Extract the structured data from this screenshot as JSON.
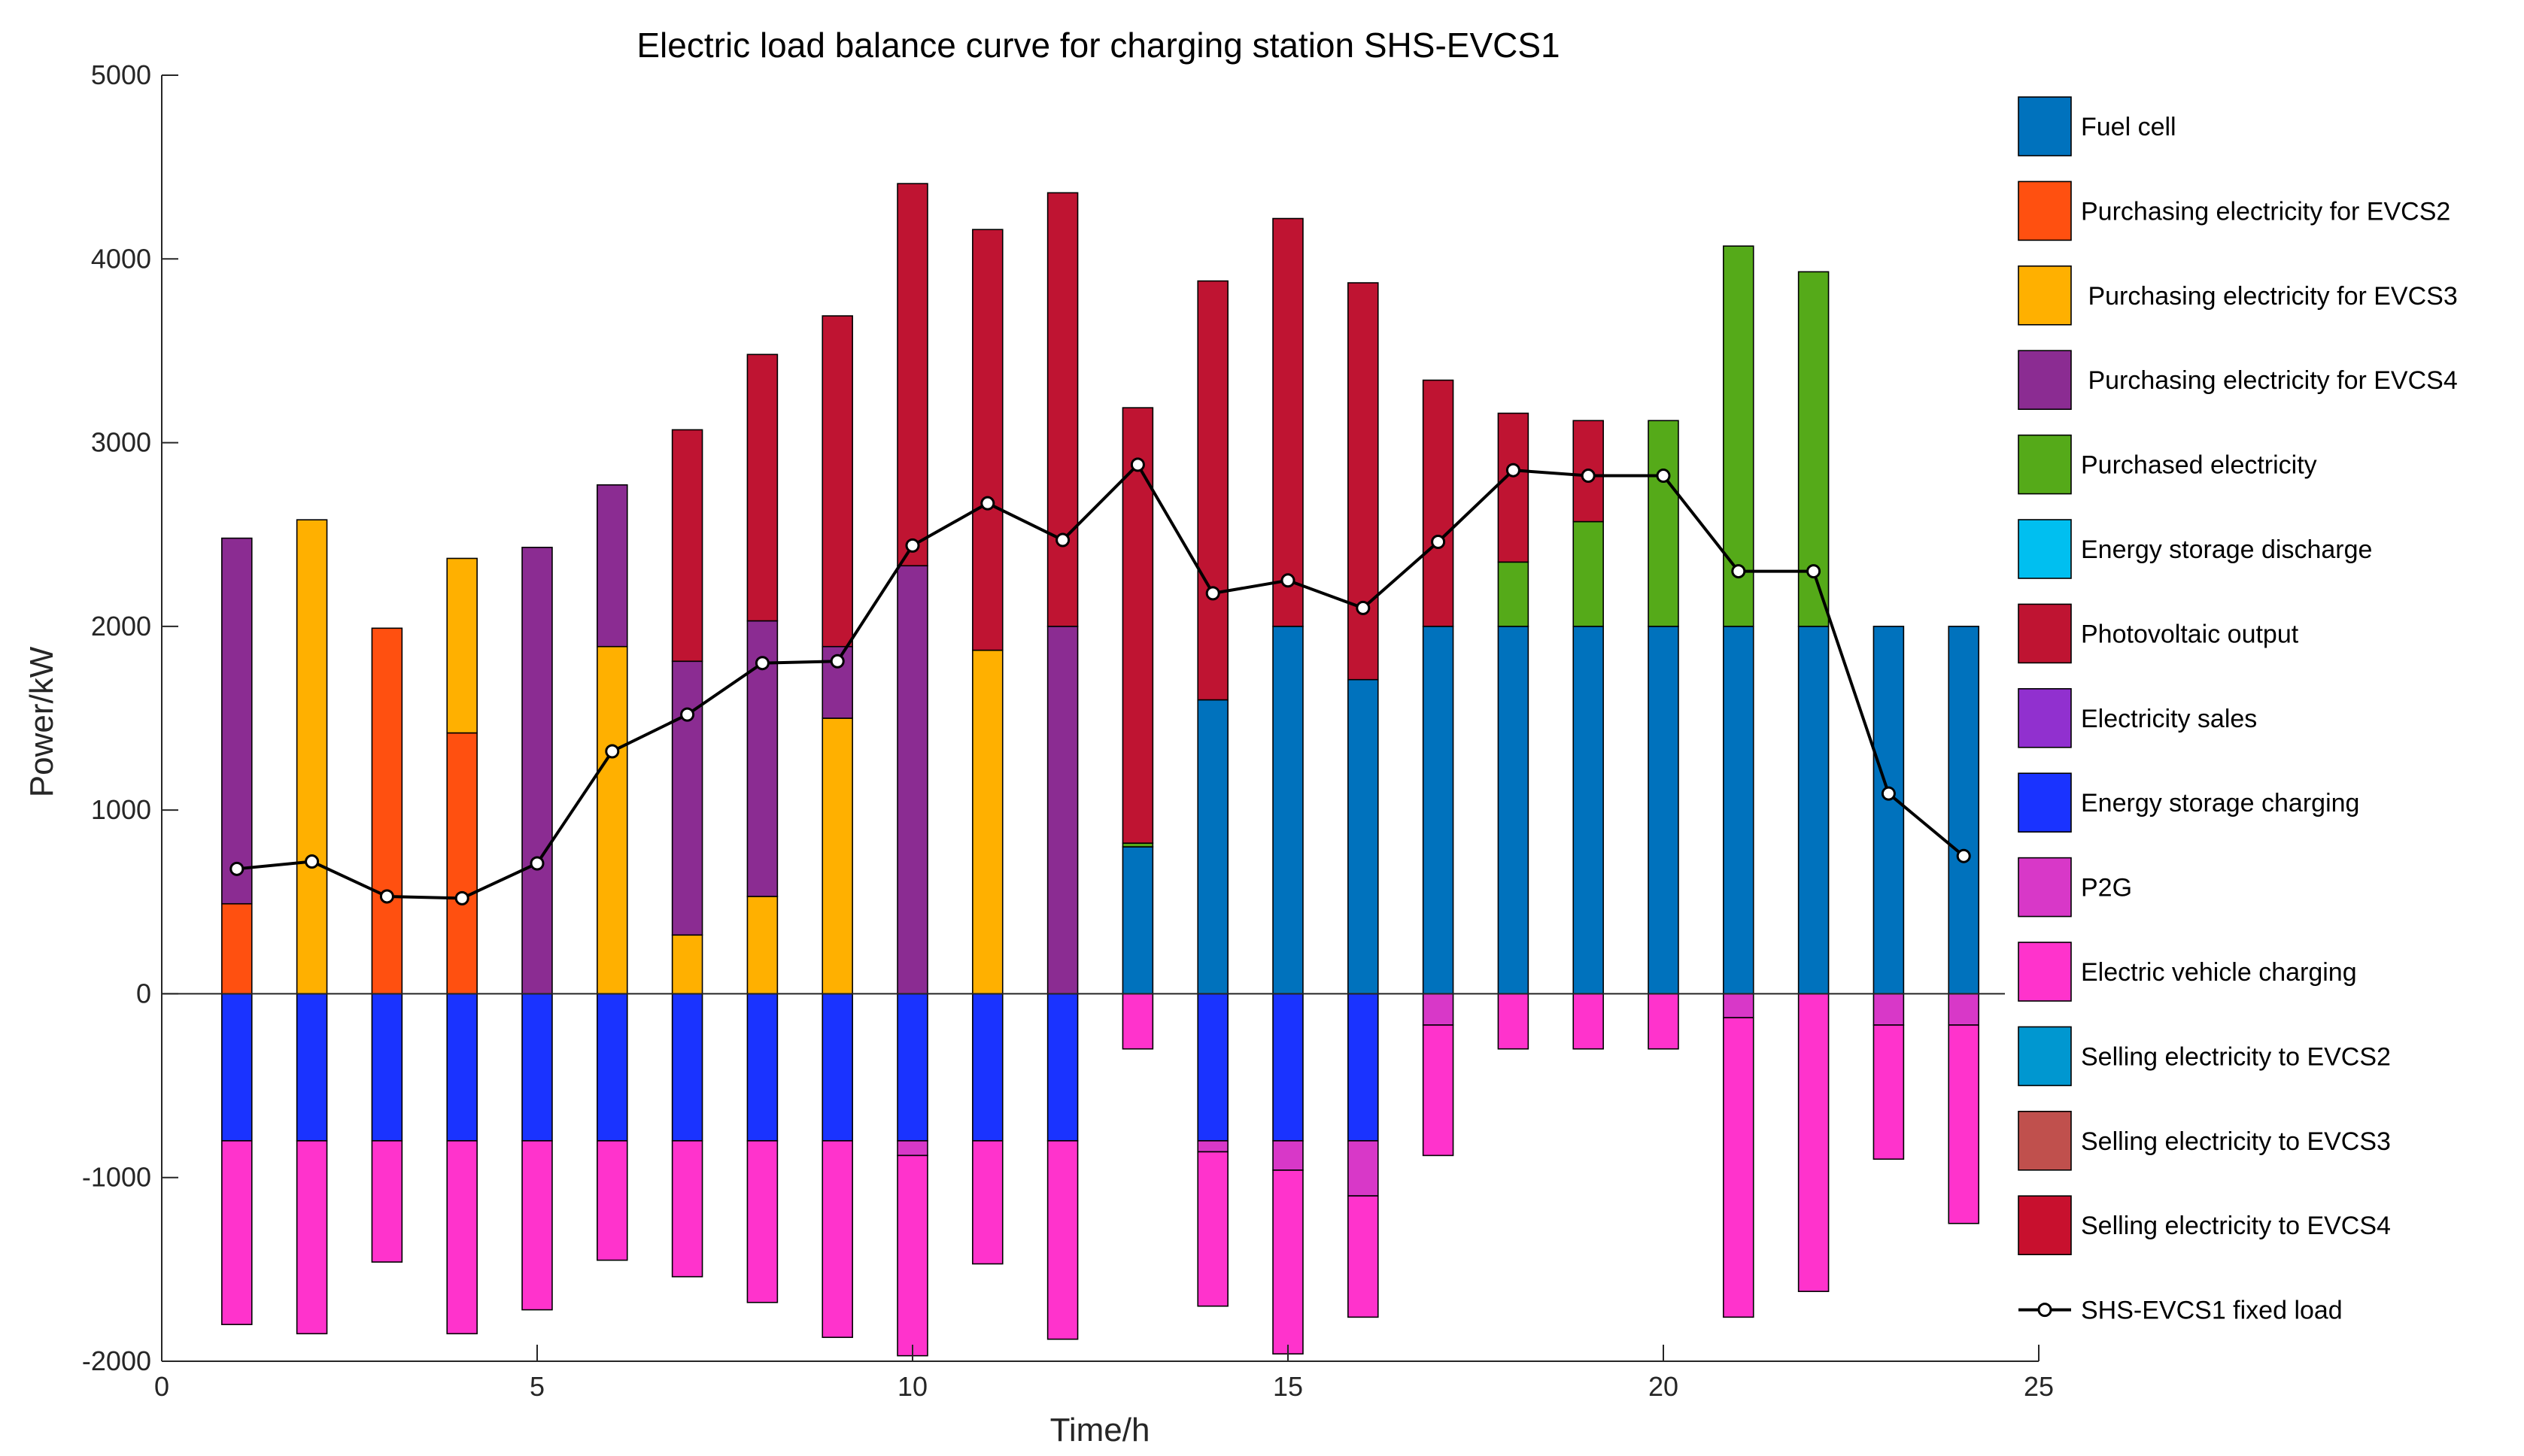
{
  "chart_data": {
    "type": "bar",
    "stacked": true,
    "title": "Electric load balance curve for charging station SHS-EVCS1",
    "xlabel": "Time/h",
    "ylabel": "Power/kW",
    "xlim": [
      0,
      25
    ],
    "ylim": [
      -2000,
      5000
    ],
    "xticks": [
      0,
      5,
      10,
      15,
      20,
      25
    ],
    "yticks": [
      -2000,
      -1000,
      0,
      1000,
      2000,
      3000,
      4000,
      5000
    ],
    "xtick_labels": [
      "0",
      "5",
      "10",
      "15",
      "20",
      "25"
    ],
    "ytick_labels": [
      "-2000",
      "-1000",
      "0",
      "1000",
      "2000",
      "3000",
      "4000",
      "5000"
    ],
    "x": [
      1,
      2,
      3,
      4,
      5,
      6,
      7,
      8,
      9,
      10,
      11,
      12,
      13,
      14,
      15,
      16,
      17,
      18,
      19,
      20,
      21,
      22,
      23,
      24
    ],
    "bar_width": 0.4,
    "legend_position": "east-outside",
    "series": [
      {
        "name": "Fuel cell",
        "color": "#0072BD",
        "values": [
          0,
          0,
          0,
          0,
          0,
          0,
          0,
          0,
          0,
          0,
          0,
          0,
          800,
          1600,
          2000,
          1710,
          2000,
          2000,
          2000,
          2000,
          2000,
          2000,
          2000,
          2000
        ]
      },
      {
        "name": "Purchasing electricity for EVCS2",
        "color": "#FF5010",
        "values": [
          490,
          0,
          1990,
          1420,
          0,
          0,
          0,
          0,
          0,
          0,
          0,
          0,
          0,
          0,
          0,
          0,
          0,
          0,
          0,
          0,
          0,
          0,
          0,
          0
        ]
      },
      {
        "name": " Purchasing electricity for EVCS3",
        "color": "#FFB000",
        "values": [
          0,
          2580,
          0,
          950,
          0,
          1890,
          320,
          530,
          1500,
          0,
          1870,
          0,
          0,
          0,
          0,
          0,
          0,
          0,
          0,
          0,
          0,
          0,
          0,
          0
        ]
      },
      {
        "name": " Purchasing electricity for EVCS4",
        "color": "#8B2C92",
        "values": [
          1990,
          0,
          0,
          0,
          2430,
          880,
          1490,
          1500,
          390,
          2330,
          0,
          2000,
          0,
          0,
          0,
          0,
          0,
          0,
          0,
          0,
          0,
          0,
          0,
          0
        ]
      },
      {
        "name": "Purchased electricity",
        "color": "#55AA19",
        "values": [
          0,
          0,
          0,
          0,
          0,
          0,
          0,
          0,
          0,
          0,
          0,
          0,
          20,
          0,
          0,
          0,
          0,
          350,
          570,
          1120,
          2070,
          1930,
          0,
          0
        ]
      },
      {
        "name": "Energy storage discharge",
        "color": "#00BFF0",
        "values": [
          0,
          0,
          0,
          0,
          0,
          0,
          0,
          0,
          0,
          0,
          0,
          0,
          0,
          0,
          0,
          0,
          0,
          0,
          0,
          0,
          0,
          0,
          0,
          0
        ]
      },
      {
        "name": "Photovoltaic output",
        "color": "#BF1432",
        "values": [
          0,
          0,
          0,
          0,
          0,
          0,
          1260,
          1450,
          1800,
          2080,
          2290,
          2360,
          2370,
          2280,
          2220,
          2160,
          1340,
          810,
          550,
          0,
          0,
          0,
          0,
          0
        ]
      },
      {
        "name": "Electricity sales",
        "color": "#9130CF",
        "values": [
          0,
          0,
          0,
          0,
          0,
          0,
          0,
          0,
          0,
          0,
          0,
          0,
          0,
          0,
          0,
          0,
          0,
          0,
          0,
          0,
          0,
          0,
          0,
          0
        ]
      },
      {
        "name": "Energy storage charging",
        "color": "#1A33FF",
        "values": [
          -800,
          -800,
          -800,
          -800,
          -800,
          -800,
          -800,
          -800,
          -800,
          -800,
          -800,
          -800,
          0,
          -800,
          -800,
          -800,
          0,
          0,
          0,
          0,
          0,
          0,
          0,
          0
        ]
      },
      {
        "name": "P2G",
        "color": "#D838C8",
        "values": [
          0,
          0,
          0,
          0,
          0,
          0,
          0,
          0,
          0,
          -80,
          0,
          0,
          0,
          -60,
          -160,
          -300,
          -170,
          0,
          0,
          0,
          -130,
          0,
          -170,
          -170
        ]
      },
      {
        "name": "Electric vehicle charging",
        "color": "#FF33CC",
        "values": [
          -1000,
          -1050,
          -660,
          -1050,
          -920,
          -650,
          -740,
          -880,
          -1070,
          -1090,
          -670,
          -1080,
          -300,
          -840,
          -1000,
          -660,
          -710,
          -300,
          -300,
          -300,
          -1630,
          -1620,
          -730,
          -1080
        ]
      },
      {
        "name": "Selling electricity to EVCS2",
        "color": "#0097D0",
        "values": [
          0,
          0,
          0,
          0,
          0,
          0,
          0,
          0,
          0,
          0,
          0,
          0,
          0,
          0,
          0,
          0,
          0,
          0,
          0,
          0,
          0,
          0,
          0,
          0
        ]
      },
      {
        "name": "Selling electricity to EVCS3",
        "color": "#C0504D",
        "values": [
          0,
          0,
          0,
          0,
          0,
          0,
          0,
          0,
          0,
          0,
          0,
          0,
          0,
          0,
          0,
          0,
          0,
          0,
          0,
          0,
          0,
          0,
          0,
          0
        ]
      },
      {
        "name": "Selling electricity to EVCS4",
        "color": "#C8102E",
        "values": [
          0,
          0,
          0,
          0,
          0,
          0,
          0,
          0,
          0,
          0,
          0,
          0,
          0,
          0,
          0,
          0,
          0,
          0,
          0,
          0,
          0,
          0,
          0,
          0
        ]
      }
    ],
    "line": {
      "name": "SHS-EVCS1 fixed load",
      "color": "#000000",
      "values": [
        680,
        720,
        530,
        520,
        710,
        1320,
        1520,
        1800,
        1810,
        2440,
        2670,
        2470,
        2880,
        2180,
        2250,
        2100,
        2460,
        2850,
        2820,
        2820,
        2300,
        2300,
        1090,
        750
      ]
    }
  }
}
